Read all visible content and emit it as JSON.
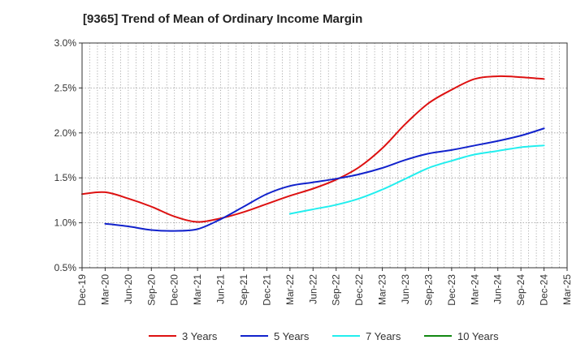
{
  "chart_data": {
    "type": "line",
    "title": "[9365]  Trend of Mean of Ordinary Income Margin",
    "xlabel": "",
    "ylabel": "",
    "x": [
      "Dec-19",
      "Mar-20",
      "Jun-20",
      "Sep-20",
      "Dec-20",
      "Mar-21",
      "Jun-21",
      "Sep-21",
      "Dec-21",
      "Mar-22",
      "Jun-22",
      "Sep-22",
      "Dec-22",
      "Mar-23",
      "Jun-23",
      "Sep-23",
      "Dec-23",
      "Mar-24",
      "Jun-24",
      "Sep-24",
      "Dec-24",
      "Mar-25"
    ],
    "ylim": [
      0.5,
      3.0
    ],
    "yticks": [
      0.5,
      1.0,
      1.5,
      2.0,
      2.5,
      3.0
    ],
    "ytick_labels": [
      "0.5%",
      "1.0%",
      "1.5%",
      "2.0%",
      "2.5%",
      "3.0%"
    ],
    "grid": "dotted",
    "legend_position": "bottom",
    "series": [
      {
        "name": "3 Years",
        "color": "#dd1111",
        "values": [
          1.32,
          1.34,
          1.27,
          1.18,
          1.07,
          1.01,
          1.05,
          1.12,
          1.21,
          1.3,
          1.38,
          1.48,
          1.62,
          1.83,
          2.1,
          2.33,
          2.48,
          2.6,
          2.63,
          2.62,
          2.6,
          null
        ]
      },
      {
        "name": "5 Years",
        "color": "#1122cc",
        "values": [
          null,
          0.99,
          0.96,
          0.92,
          0.91,
          0.93,
          1.04,
          1.18,
          1.32,
          1.41,
          1.45,
          1.49,
          1.54,
          1.61,
          1.7,
          1.77,
          1.81,
          1.86,
          1.91,
          1.97,
          2.05,
          null
        ]
      },
      {
        "name": "7 Years",
        "color": "#22eeee",
        "values": [
          null,
          null,
          null,
          null,
          null,
          null,
          null,
          null,
          null,
          1.1,
          1.15,
          1.2,
          1.27,
          1.37,
          1.49,
          1.61,
          1.69,
          1.76,
          1.8,
          1.84,
          1.86,
          null
        ]
      },
      {
        "name": "10 Years",
        "color": "#118811",
        "values": [
          null,
          null,
          null,
          null,
          null,
          null,
          null,
          null,
          null,
          null,
          null,
          null,
          null,
          null,
          null,
          null,
          null,
          null,
          null,
          null,
          null,
          null
        ]
      }
    ]
  }
}
